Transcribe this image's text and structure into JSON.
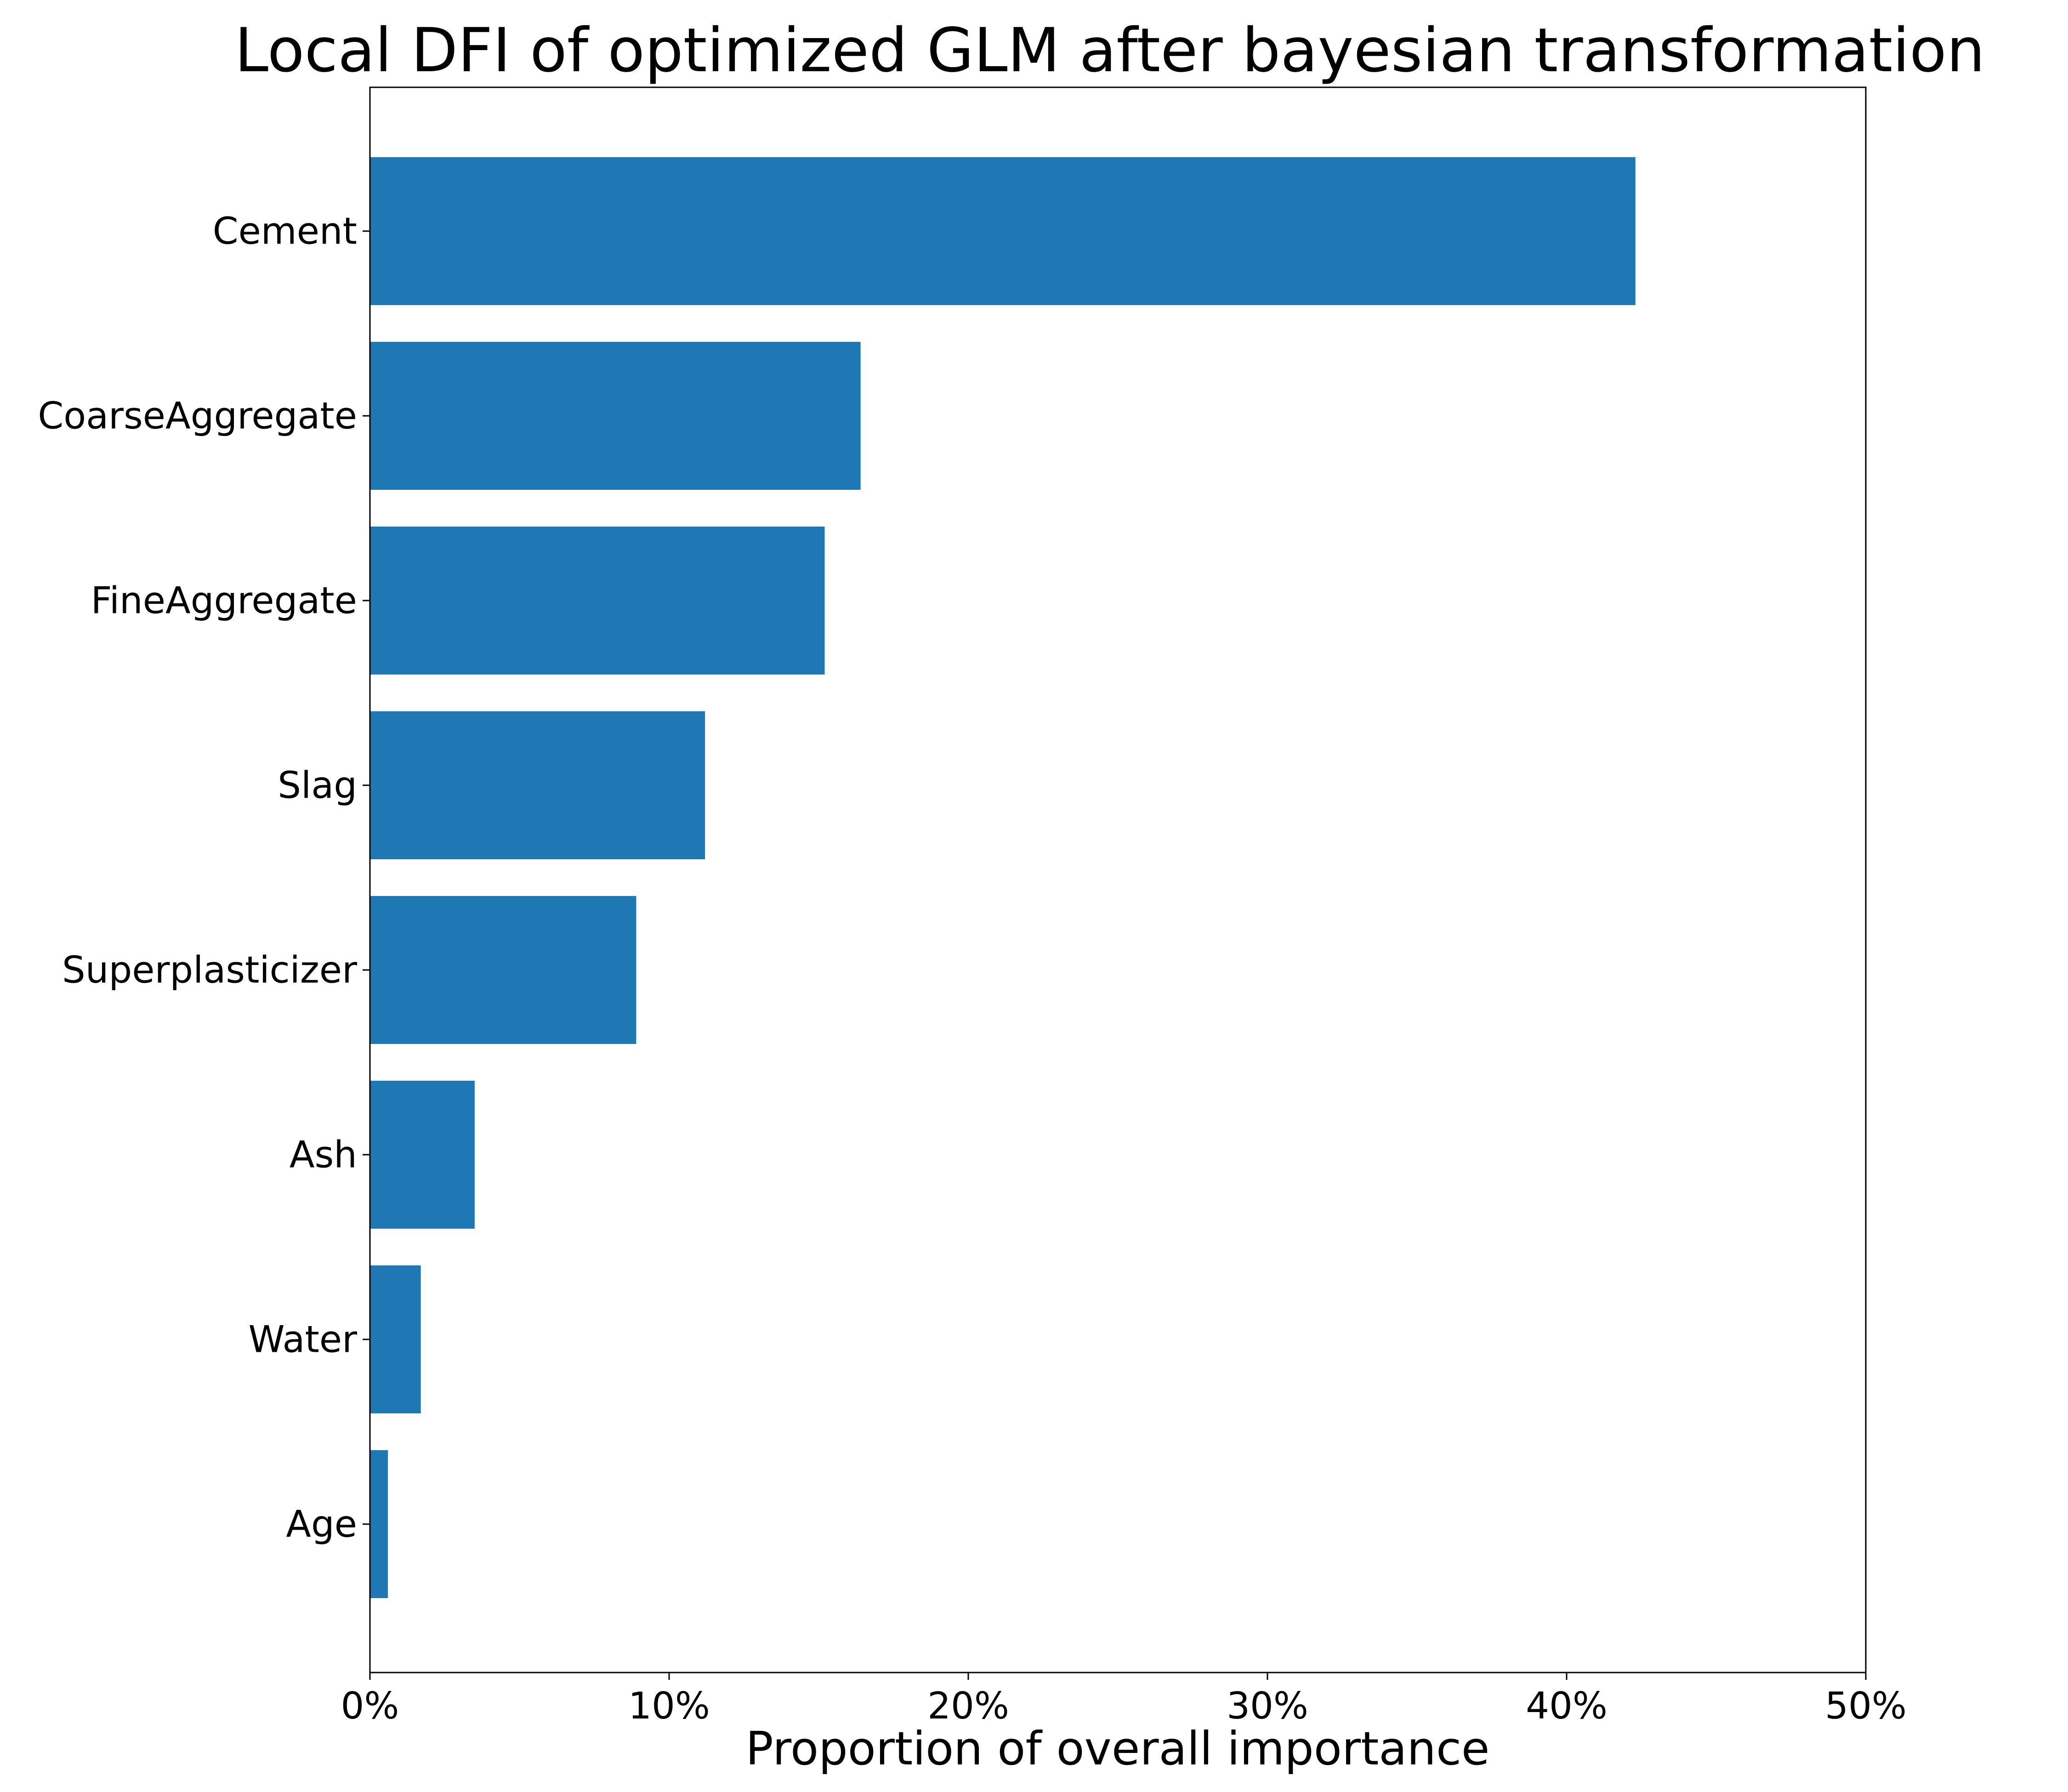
{
  "chart_data": {
    "type": "bar",
    "orientation": "horizontal",
    "title": "Local DFI of optimized GLM after bayesian transformation",
    "xlabel": "Proportion of overall importance",
    "ylabel": "",
    "categories": [
      "Cement",
      "CoarseAggregate",
      "FineAggregate",
      "Slag",
      "Superplasticizer",
      "Ash",
      "Water",
      "Age"
    ],
    "values": [
      42.3,
      16.4,
      15.2,
      11.2,
      8.9,
      3.5,
      1.7,
      0.6
    ],
    "xlim": [
      0,
      50
    ],
    "xticks": [
      0,
      10,
      20,
      30,
      40,
      50
    ],
    "xtick_labels": [
      "0%",
      "10%",
      "20%",
      "30%",
      "40%",
      "50%"
    ],
    "grid": false,
    "colors": {
      "bar": "#1f77b4",
      "axis": "#000000"
    }
  }
}
